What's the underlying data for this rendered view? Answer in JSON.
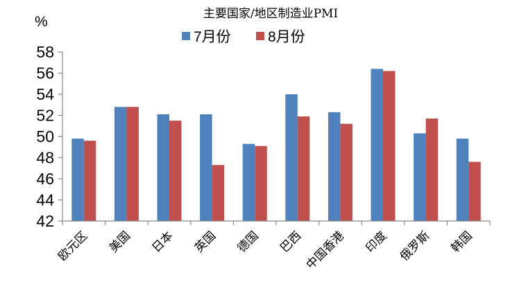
{
  "chart_data": {
    "type": "bar",
    "title": "主要国家/地区制造业PMI",
    "ylabel": "%",
    "xlabel": "",
    "ylim": [
      42,
      58
    ],
    "yticks": [
      42,
      44,
      46,
      48,
      50,
      52,
      54,
      56,
      58
    ],
    "grid": false,
    "legend_position": "top-center",
    "categories": [
      "欧元区",
      "美国",
      "日本",
      "英国",
      "德国",
      "巴西",
      "中国香港",
      "印度",
      "俄罗斯",
      "韩国"
    ],
    "series": [
      {
        "name": "7月份",
        "color": "#4F81BD",
        "values": [
          49.8,
          52.8,
          52.1,
          52.1,
          49.3,
          54.0,
          52.3,
          56.4,
          50.3,
          49.8
        ]
      },
      {
        "name": "8月份",
        "color": "#C0504D",
        "values": [
          49.6,
          52.8,
          51.5,
          47.3,
          49.1,
          51.9,
          51.2,
          56.2,
          51.7,
          47.6
        ]
      }
    ]
  }
}
